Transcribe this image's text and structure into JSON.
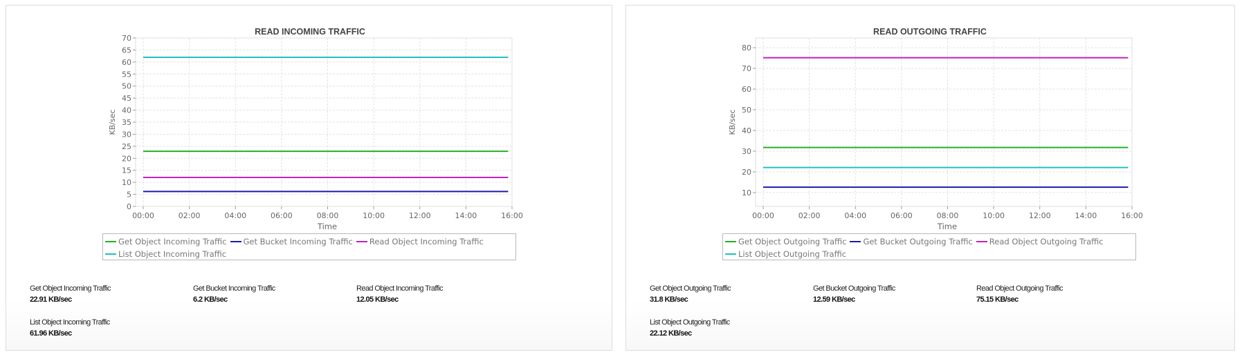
{
  "chart_data": [
    {
      "type": "line",
      "title": "READ INCOMING TRAFFIC",
      "xlabel": "Time",
      "ylabel": "KB/sec",
      "x_ticks": [
        "00:00",
        "02:00",
        "04:00",
        "06:00",
        "08:00",
        "10:00",
        "12:00",
        "14:00",
        "16:00"
      ],
      "y_ticks": [
        0,
        5,
        10,
        15,
        20,
        25,
        30,
        35,
        40,
        45,
        50,
        55,
        60,
        65,
        70
      ],
      "ylim": [
        0,
        70
      ],
      "xlim": [
        "00:00",
        "16:00"
      ],
      "grid": true,
      "legend_position": "bottom",
      "x": [
        "00:00",
        "15:50"
      ],
      "series": [
        {
          "name": "Get Object Incoming Traffic",
          "color": "#22b022",
          "values": [
            22.91,
            22.91
          ]
        },
        {
          "name": "Get Bucket Incoming Traffic",
          "color": "#1a1aa8",
          "values": [
            6.2,
            6.2
          ]
        },
        {
          "name": "Read Object Incoming Traffic",
          "color": "#c020c0",
          "values": [
            12.05,
            12.05
          ]
        },
        {
          "name": "List Object Incoming Traffic",
          "color": "#20c0c0",
          "values": [
            61.96,
            61.96
          ]
        }
      ]
    },
    {
      "type": "line",
      "title": "READ OUTGOING TRAFFIC",
      "xlabel": "Time",
      "ylabel": "KB/sec",
      "x_ticks": [
        "00:00",
        "02:00",
        "04:00",
        "06:00",
        "08:00",
        "10:00",
        "12:00",
        "14:00",
        "16:00"
      ],
      "y_ticks": [
        10,
        20,
        30,
        40,
        50,
        60,
        70,
        80
      ],
      "ylim": [
        3.3,
        84.7
      ],
      "xlim": [
        "00:00",
        "16:00"
      ],
      "grid": true,
      "legend_position": "bottom",
      "x": [
        "00:00",
        "15:50"
      ],
      "series": [
        {
          "name": "Get Object Outgoing Traffic",
          "color": "#22b022",
          "values": [
            31.8,
            31.8
          ]
        },
        {
          "name": "Get Bucket Outgoing Traffic",
          "color": "#1a1aa8",
          "values": [
            12.59,
            12.59
          ]
        },
        {
          "name": "Read Object Outgoing Traffic",
          "color": "#c020c0",
          "values": [
            75.15,
            75.15
          ]
        },
        {
          "name": "List Object Outgoing Traffic",
          "color": "#20c0c0",
          "values": [
            22.12,
            22.12
          ]
        }
      ]
    }
  ],
  "stats": [
    [
      {
        "label": "Get Object Incoming Traffic",
        "value": "22.91 KB/sec"
      },
      {
        "label": "Get Bucket Incoming Traffic",
        "value": "6.2 KB/sec"
      },
      {
        "label": "Read Object Incoming Traffic",
        "value": "12.05 KB/sec"
      },
      {
        "label": "List Object Incoming Traffic",
        "value": "61.96 KB/sec"
      }
    ],
    [
      {
        "label": "Get Object Outgoing Traffic",
        "value": "31.8 KB/sec"
      },
      {
        "label": "Get Bucket Outgoing Traffic",
        "value": "12.59 KB/sec"
      },
      {
        "label": "Read Object Outgoing Traffic",
        "value": "75.15 KB/sec"
      },
      {
        "label": "List Object Outgoing Traffic",
        "value": "22.12 KB/sec"
      }
    ]
  ]
}
